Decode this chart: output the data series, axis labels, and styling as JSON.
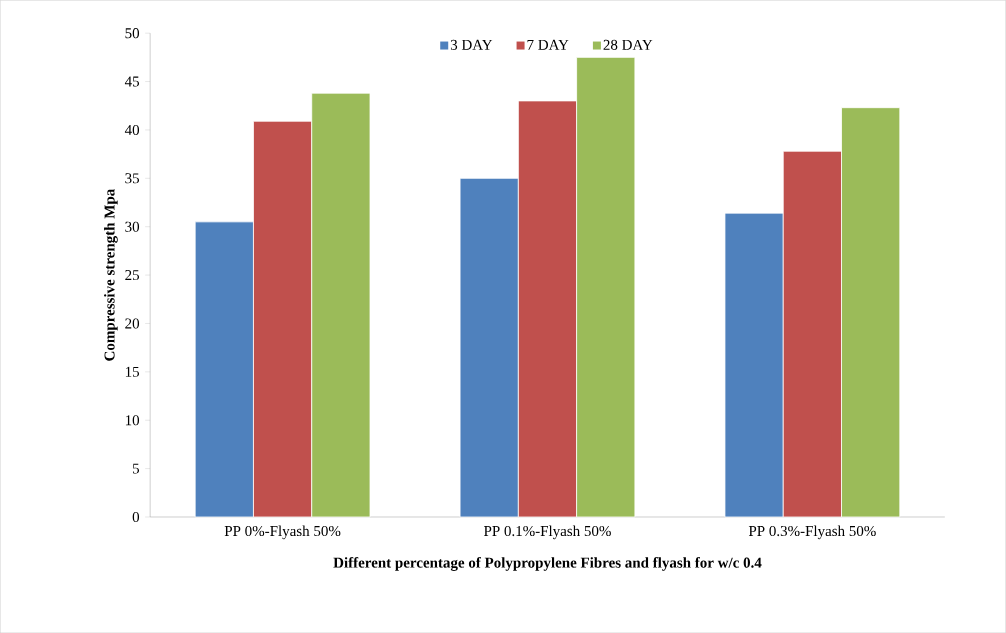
{
  "chart_data": {
    "type": "bar",
    "xlabel": "Different percentage of Polypropylene Fibres and flyash for w/c 0.4",
    "ylabel": "Compressive strength Mpa",
    "categories": [
      "PP 0%-Flyash 50%",
      "PP 0.1%-Flyash 50%",
      "PP 0.3%-Flyash 50%"
    ],
    "series": [
      {
        "name": "3 DAY",
        "color": "#4f81bd",
        "values": [
          30.5,
          35.0,
          31.4
        ]
      },
      {
        "name": "7 DAY",
        "color": "#c0504d",
        "values": [
          40.9,
          43.0,
          37.8
        ]
      },
      {
        "name": "28 DAY",
        "color": "#9bbb59",
        "values": [
          43.8,
          47.5,
          42.3
        ]
      }
    ],
    "ylim": [
      0,
      50
    ],
    "yticks": [
      0,
      5,
      10,
      15,
      20,
      25,
      30,
      35,
      40,
      45,
      50
    ],
    "grid": false,
    "legend": "top"
  }
}
